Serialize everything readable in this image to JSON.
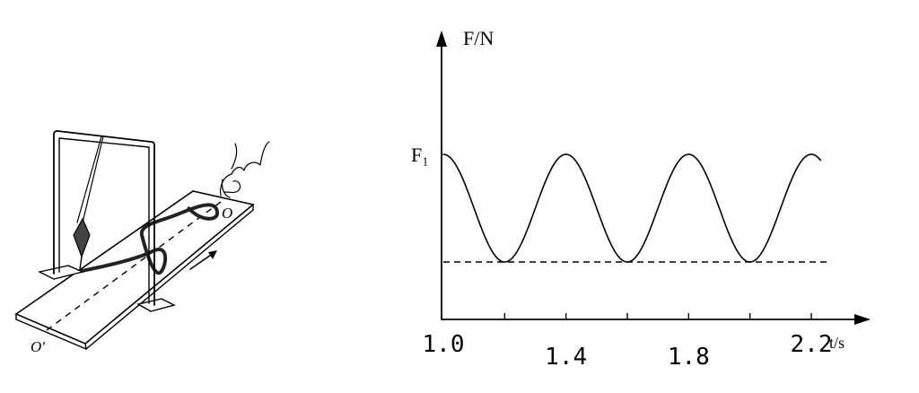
{
  "figure_left": {
    "label_o": "O",
    "label_o_prime": "O'"
  },
  "figure_right": {
    "y_axis_label": "F/N",
    "x_axis_label": "t/s",
    "peak_label": "F₁",
    "x_tick_labels": [
      "1.0",
      "1.4",
      "1.8",
      "2.2"
    ]
  },
  "chart_data": {
    "type": "line",
    "xlabel": "t/s",
    "ylabel": "F/N",
    "x_ticks": [
      1.0,
      1.4,
      1.8,
      2.2
    ],
    "series": [
      {
        "x": [
          1.0,
          1.1,
          1.2,
          1.3,
          1.4,
          1.5,
          1.6,
          1.7,
          1.8,
          1.9,
          2.0,
          2.1,
          2.2
        ],
        "y": [
          1,
          0.5,
          0,
          0.5,
          1,
          0.5,
          0,
          0.5,
          1,
          0.5,
          0,
          0.5,
          1
        ]
      }
    ],
    "annotations": [
      "F₁ marks the peak level",
      "dashed horizontal line at the minimum level"
    ],
    "grid": false
  }
}
